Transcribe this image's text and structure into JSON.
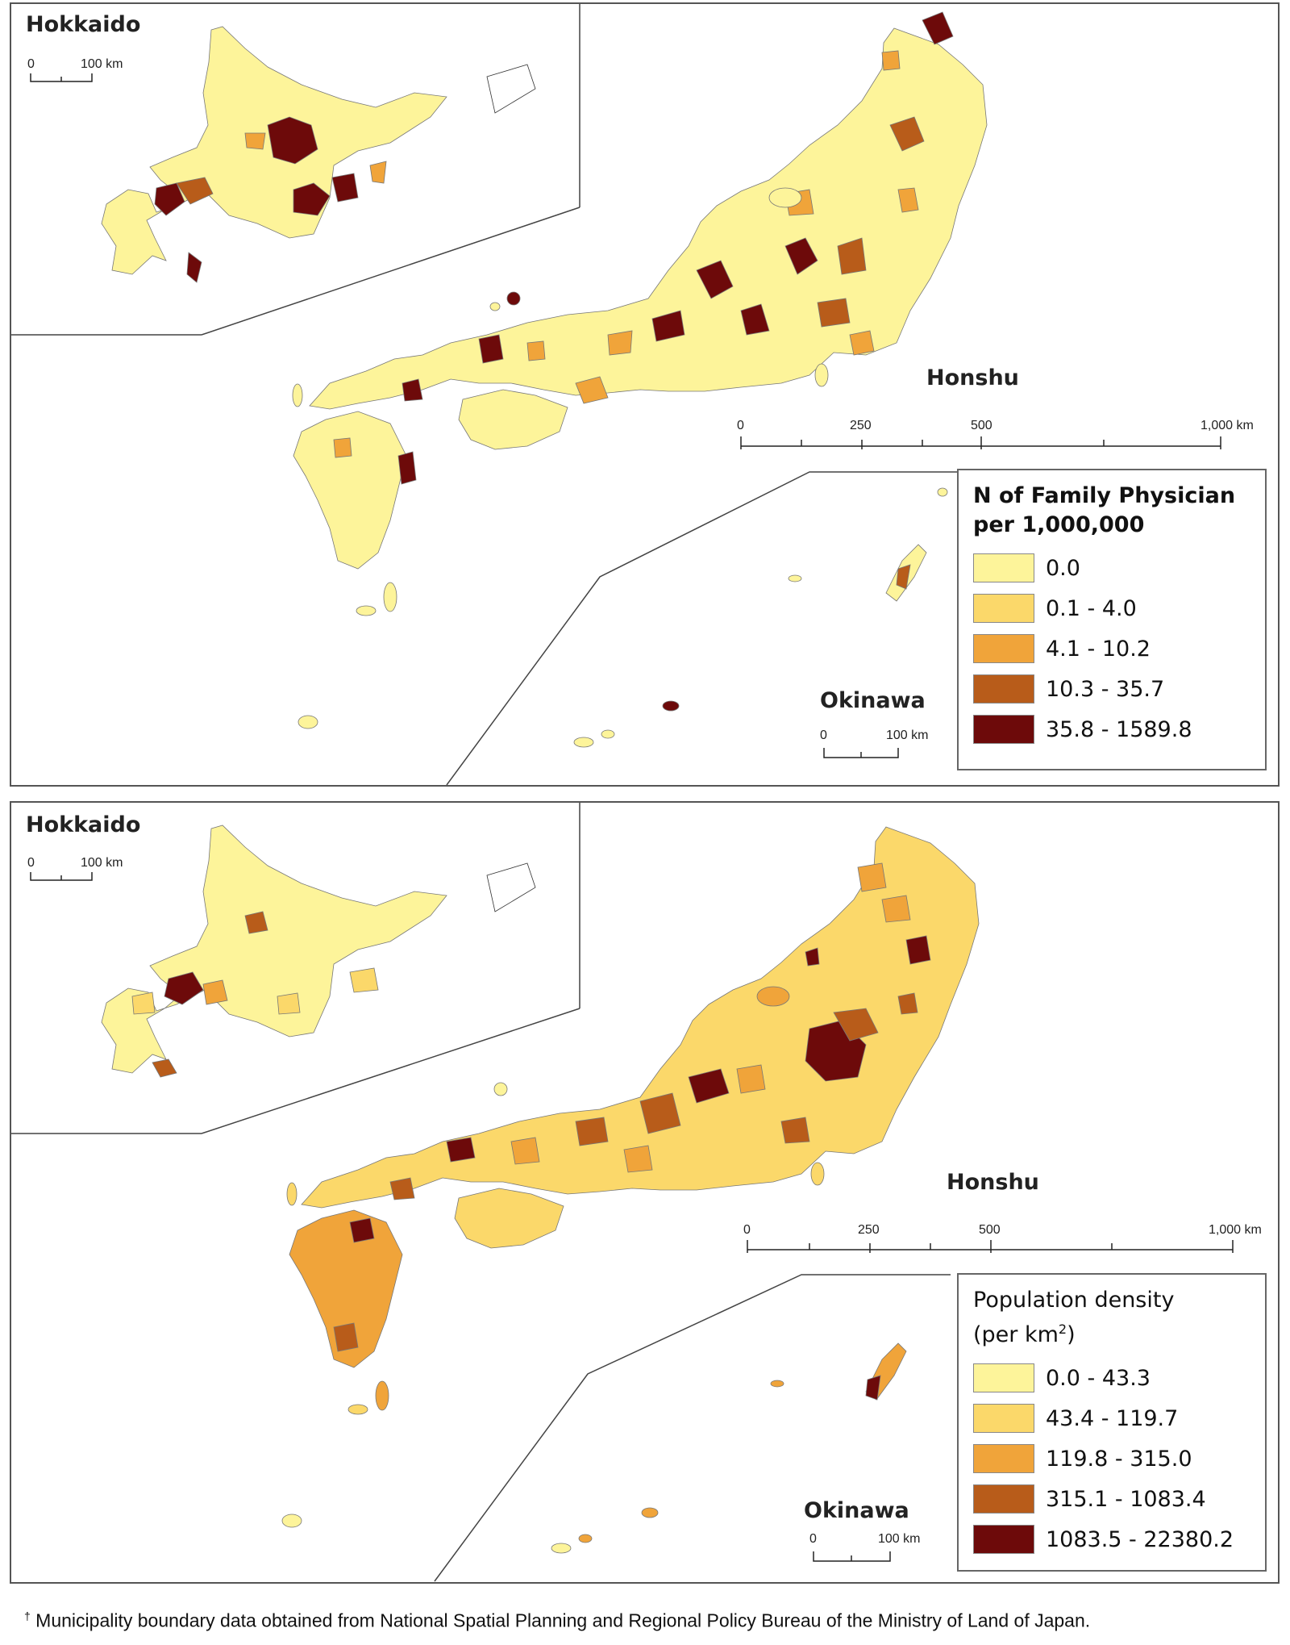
{
  "maps": [
    {
      "inset_title": "Hokkaido",
      "inset_scale": {
        "zero": "0",
        "end": "100 km"
      },
      "main_label": "Honshu",
      "main_scale": {
        "t0": "0",
        "t1": "250",
        "t2": "500",
        "t3": "1,000 km"
      },
      "okinawa_label": "Okinawa",
      "okinawa_scale": {
        "zero": "0",
        "end": "100 km"
      },
      "legend": {
        "title_line1": "N of Family Physician",
        "title_line2": "per 1,000,000",
        "classes": [
          {
            "label": "0.0",
            "color": "#fdf49a"
          },
          {
            "label": "0.1 - 4.0",
            "color": "#fbd86a"
          },
          {
            "label": "4.1 - 10.2",
            "color": "#f0a43a"
          },
          {
            "label": "10.3 - 35.7",
            "color": "#b85c1a"
          },
          {
            "label": "35.8 - 1589.8",
            "color": "#6d0a0a"
          }
        ]
      }
    },
    {
      "inset_title": "Hokkaido",
      "inset_scale": {
        "zero": "0",
        "end": "100 km"
      },
      "main_label": "Honshu",
      "main_scale": {
        "t0": "0",
        "t1": "250",
        "t2": "500",
        "t3": "1,000 km"
      },
      "okinawa_label": "Okinawa",
      "okinawa_scale": {
        "zero": "0",
        "end": "100 km"
      },
      "legend": {
        "title_line1": "Population density",
        "title_line2": "(per km",
        "title_sup": "2",
        "title_close": ")",
        "classes": [
          {
            "label": "0.0 - 43.3",
            "color": "#fdf49a"
          },
          {
            "label": "43.4 - 119.7",
            "color": "#fbd86a"
          },
          {
            "label": "119.8 - 315.0",
            "color": "#f0a43a"
          },
          {
            "label": "315.1 - 1083.4",
            "color": "#b85c1a"
          },
          {
            "label": "1083.5 - 22380.2",
            "color": "#6d0a0a"
          }
        ]
      }
    }
  ],
  "footnote": {
    "mark": "†",
    "text": " Municipality boundary data obtained from National Spatial Planning and Regional Policy Bureau of the Ministry of Land of Japan."
  }
}
